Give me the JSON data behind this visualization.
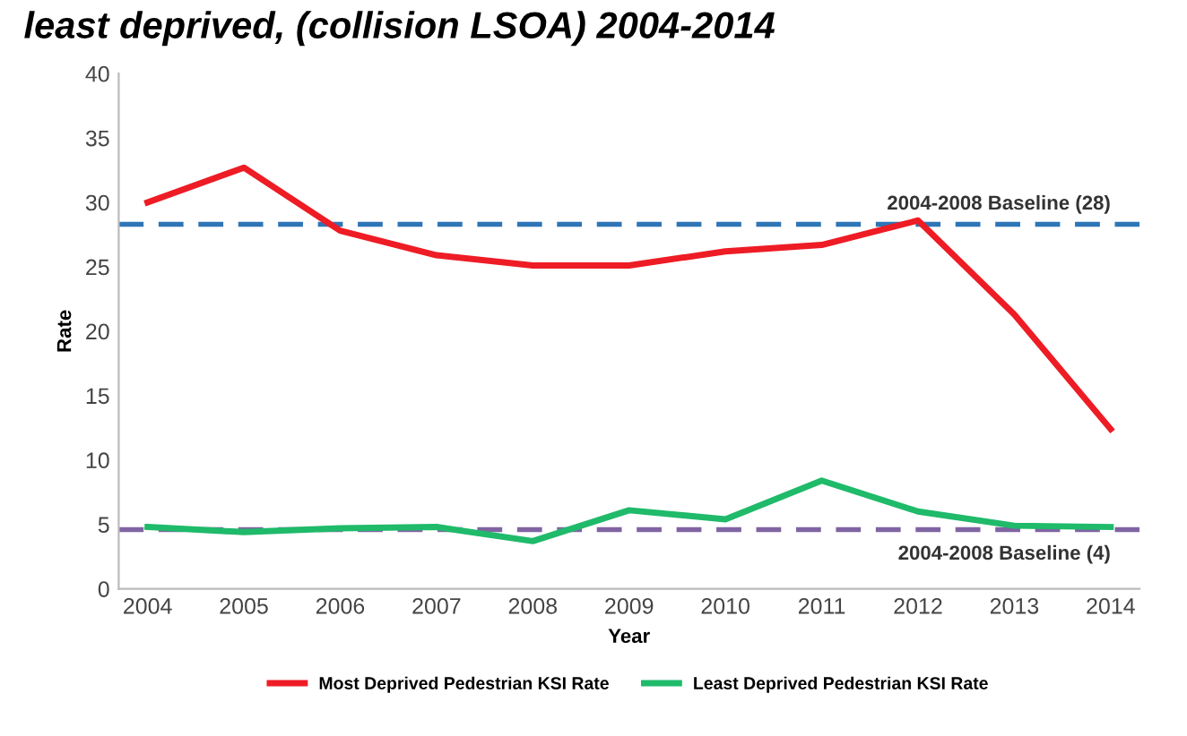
{
  "chart_data": {
    "type": "line",
    "title": "least deprived, (collision LSOA) 2004-2014",
    "xlabel": "Year",
    "ylabel": "Rate",
    "categories": [
      "2004",
      "2005",
      "2006",
      "2007",
      "2008",
      "2009",
      "2010",
      "2011",
      "2012",
      "2013",
      "2014"
    ],
    "series": [
      {
        "name": "Most Deprived Pedestrian KSI Rate",
        "color": "#ee1c25",
        "values": [
          30.0,
          32.7,
          27.8,
          25.9,
          25.1,
          25.1,
          26.2,
          26.7,
          28.6,
          21.3,
          12.4
        ]
      },
      {
        "name": "Least Deprived Pedestrian KSI Rate",
        "color": "#1fba6a",
        "values": [
          4.8,
          4.4,
          4.7,
          4.8,
          3.7,
          6.1,
          5.4,
          8.4,
          6.0,
          4.9,
          4.8
        ]
      }
    ],
    "ref_lines": [
      {
        "axis": "y",
        "value": 28.3,
        "label": "2004-2008 Baseline (28)",
        "color": "#2e75b6",
        "line_style": "dashed"
      },
      {
        "axis": "y",
        "value": 4.6,
        "label": "2004-2008 Baseline (4)",
        "color": "#8064a2",
        "line_style": "dashed"
      }
    ],
    "ylim": [
      0,
      40
    ],
    "yticks": [
      0,
      5,
      10,
      15,
      20,
      25,
      30,
      35,
      40
    ],
    "grid": false,
    "legend": "bottom",
    "marker": "none",
    "line_style": "solid"
  }
}
